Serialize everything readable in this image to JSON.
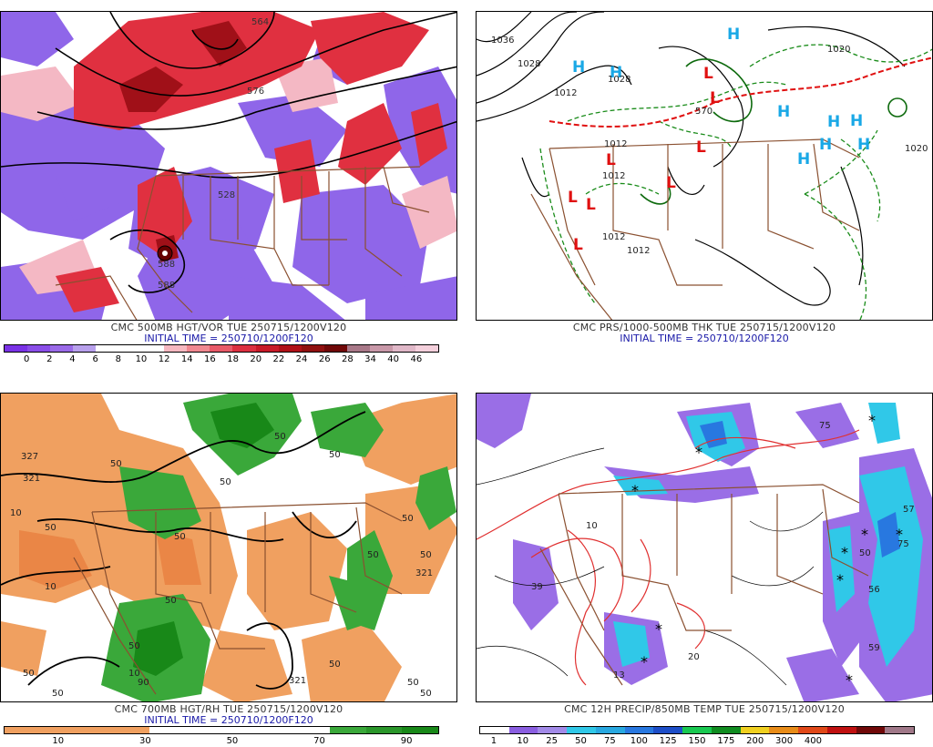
{
  "panels": [
    {
      "id": "p1",
      "title": "CMC 500MB HGT/VOR TUE 250715/1200V120",
      "subtitle": "INITIAL TIME = 250710/1200F120",
      "colorbar": {
        "colors": [
          "#7a32e6",
          "#8a4ee8",
          "#9a6ae8",
          "#b8a0ec",
          "#ffffff",
          "#ffffff",
          "#ffffff",
          "#f6b8c0",
          "#f08890",
          "#e85a68",
          "#dc3040",
          "#c81a28",
          "#b01018",
          "#901010",
          "#700808",
          "#a87888",
          "#c898a8",
          "#e0b8c8",
          "#f4d0dc"
        ],
        "labels": [
          "0",
          "2",
          "4",
          "6",
          "8",
          "10",
          "12",
          "14",
          "16",
          "18",
          "20",
          "22",
          "24",
          "26",
          "28",
          "34",
          "40",
          "46"
        ]
      },
      "contour_labels": [
        "564",
        "576",
        "528",
        "588",
        "588"
      ],
      "icons": [
        "low-pressure-icon"
      ]
    },
    {
      "id": "p2",
      "title": "CMC PRS/1000-500MB THK TUE 250715/1200V120",
      "subtitle": "INITIAL TIME = 250710/1200F120",
      "colorbar": null,
      "contour_labels": [
        "1036",
        "1028",
        "1028",
        "1020",
        "570",
        "1012",
        "1012",
        "1012",
        "1012",
        "1012",
        "1020"
      ],
      "highs": [
        "H",
        "H",
        "H",
        "H",
        "H",
        "H",
        "H",
        "H",
        "H"
      ],
      "lows": [
        "L",
        "L",
        "L",
        "L",
        "L",
        "L",
        "L",
        "L"
      ],
      "colors": {
        "high": "#19a8e6",
        "low": "#e01010",
        "thickness_dashed": "#e01010",
        "isobar": "#000000",
        "thickness": "#1a8c1a"
      }
    },
    {
      "id": "p3",
      "title": "CMC 700MB HGT/RH TUE 250715/1200V120",
      "subtitle": "INITIAL TIME = 250710/1200F120",
      "colorbar": {
        "colors": [
          "#f0a060",
          "#f0a060",
          "#f0a060",
          "#f0a060",
          "#ffffff",
          "#ffffff",
          "#ffffff",
          "#ffffff",
          "#ffffff",
          "#3aa83a",
          "#2a962a",
          "#188818"
        ],
        "labels": [
          "10",
          "30",
          "50",
          "70",
          "90"
        ]
      },
      "contour_labels": [
        "327",
        "321",
        "10",
        "50",
        "10",
        "50",
        "50",
        "50",
        "50",
        "50",
        "50",
        "50",
        "321",
        "50",
        "50",
        "10",
        "50",
        "90",
        "50",
        "321",
        "50",
        "50",
        "50",
        "50"
      ],
      "icons": []
    },
    {
      "id": "p4",
      "title": "CMC 12H PRECIP/850MB TEMP TUE 250715/1200V120",
      "subtitle": "",
      "colorbar": {
        "colors": [
          "#ffffff",
          "#8a5ee0",
          "#a28ae8",
          "#30c8e8",
          "#28a8e0",
          "#2878e0",
          "#1d4ec8",
          "#18c850",
          "#108c20",
          "#f0d020",
          "#e88c18",
          "#e04818",
          "#c01010",
          "#700808",
          "#a07888"
        ],
        "labels": [
          "1",
          "10",
          "25",
          "50",
          "75",
          "100",
          "125",
          "150",
          "175",
          "200",
          "300",
          "400"
        ]
      },
      "contour_labels": [
        "75",
        "75",
        "57",
        "50",
        "56",
        "39",
        "10",
        "13",
        "20",
        "59"
      ],
      "icons": [
        "snow-asterisk-icon"
      ]
    }
  ]
}
